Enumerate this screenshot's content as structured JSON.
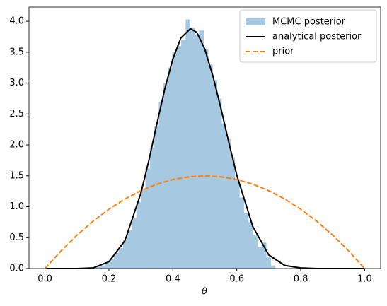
{
  "chart_data": {
    "type": "histogram",
    "xlabel": "θ",
    "histogram": {
      "name": "MCMC posterior",
      "color": "#a6c8e1",
      "bins": [
        0.16,
        0.174,
        0.188,
        0.202,
        0.216,
        0.23,
        0.244,
        0.258,
        0.272,
        0.286,
        0.3,
        0.314,
        0.328,
        0.342,
        0.356,
        0.37,
        0.384,
        0.398,
        0.412,
        0.426,
        0.44,
        0.454,
        0.468,
        0.482,
        0.496,
        0.51,
        0.524,
        0.538,
        0.552,
        0.566,
        0.58,
        0.594,
        0.608,
        0.622,
        0.636,
        0.65,
        0.664,
        0.678,
        0.692,
        0.706,
        0.72
      ],
      "values": [
        0.03,
        0.05,
        0.09,
        0.15,
        0.25,
        0.33,
        0.46,
        0.62,
        0.82,
        1.08,
        1.28,
        1.62,
        1.96,
        2.3,
        2.7,
        3.0,
        3.25,
        3.5,
        3.6,
        3.7,
        4.03,
        3.9,
        3.78,
        3.85,
        3.55,
        3.3,
        3.05,
        2.75,
        2.35,
        2.1,
        1.8,
        1.45,
        1.15,
        0.9,
        0.75,
        0.55,
        0.35,
        0.42,
        0.18,
        0.05
      ]
    },
    "series": [
      {
        "name": "analytical posterior",
        "color": "#000000",
        "dash": false,
        "x": [
          0,
          0.05,
          0.1,
          0.15,
          0.2,
          0.25,
          0.3,
          0.325,
          0.35,
          0.375,
          0.4,
          0.425,
          0.455,
          0.475,
          0.5,
          0.525,
          0.55,
          0.575,
          0.6,
          0.65,
          0.7,
          0.75,
          0.8,
          0.85,
          0.9,
          0.95,
          1
        ],
        "values": [
          0,
          0,
          0,
          0.01,
          0.11,
          0.45,
          1.22,
          1.75,
          2.34,
          2.91,
          3.39,
          3.73,
          3.88,
          3.82,
          3.55,
          3.12,
          2.6,
          2.04,
          1.51,
          0.68,
          0.22,
          0.05,
          0.01,
          0,
          0,
          0,
          0
        ]
      },
      {
        "name": "prior",
        "color": "#ff7f0e",
        "dash": true,
        "x": [
          0,
          0.05,
          0.1,
          0.15,
          0.2,
          0.25,
          0.3,
          0.35,
          0.4,
          0.45,
          0.5,
          0.55,
          0.6,
          0.65,
          0.7,
          0.75,
          0.8,
          0.85,
          0.9,
          0.95,
          1
        ],
        "values": [
          0,
          0.285,
          0.54,
          0.765,
          0.96,
          1.125,
          1.26,
          1.365,
          1.44,
          1.485,
          1.5,
          1.485,
          1.44,
          1.365,
          1.26,
          1.125,
          0.96,
          0.765,
          0.54,
          0.285,
          0
        ]
      }
    ],
    "xlim": [
      -0.05,
      1.05
    ],
    "ylim": [
      0,
      4.23
    ],
    "xticks": [
      {
        "value": 0,
        "label": "0.0"
      },
      {
        "value": 0.2,
        "label": "0.2"
      },
      {
        "value": 0.4,
        "label": "0.4"
      },
      {
        "value": 0.6,
        "label": "0.6"
      },
      {
        "value": 0.8,
        "label": "0.8"
      },
      {
        "value": 1,
        "label": "1.0"
      }
    ],
    "yticks": [
      {
        "value": 0,
        "label": "0.0"
      },
      {
        "value": 0.5,
        "label": "0.5"
      },
      {
        "value": 1,
        "label": "1.0"
      },
      {
        "value": 1.5,
        "label": "1.5"
      },
      {
        "value": 2,
        "label": "2.0"
      },
      {
        "value": 2.5,
        "label": "2.5"
      },
      {
        "value": 3,
        "label": "3.0"
      },
      {
        "value": 3.5,
        "label": "3.5"
      },
      {
        "value": 4,
        "label": "4.0"
      }
    ],
    "legend": "upper right"
  }
}
